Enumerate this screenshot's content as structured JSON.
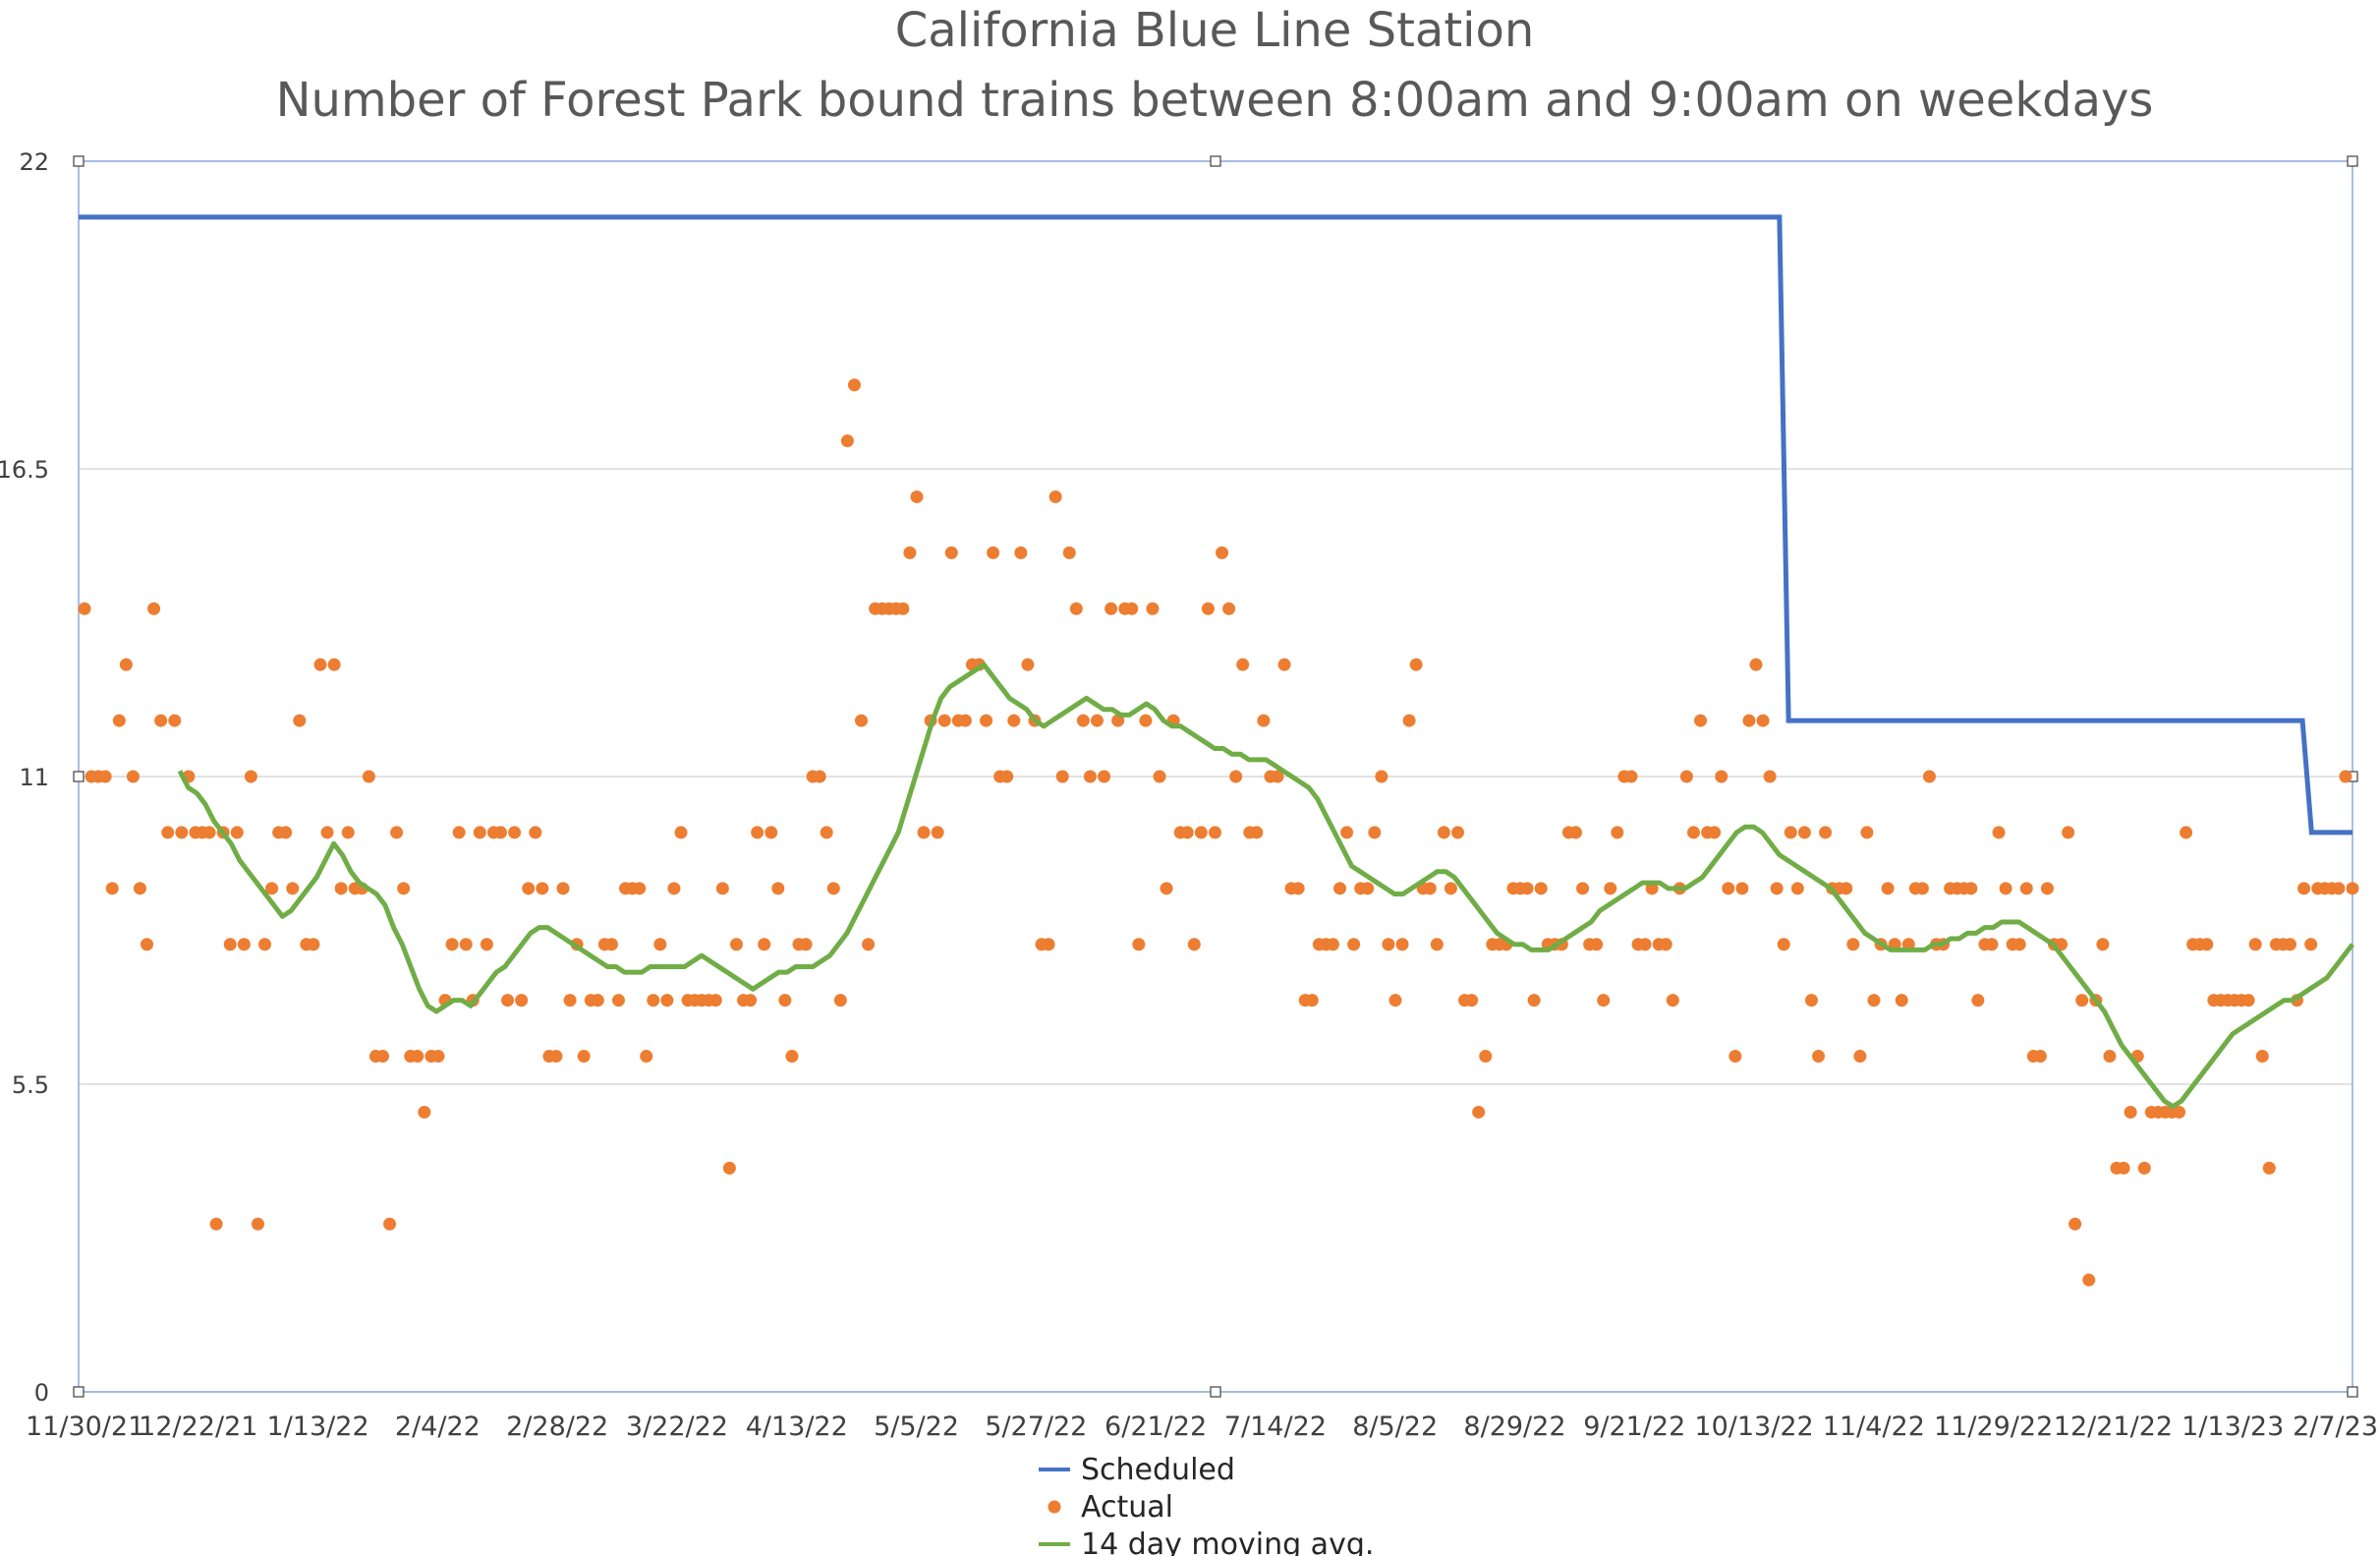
{
  "chart_data": {
    "type": "line",
    "title": "California Blue Line Station",
    "subtitle": "Number of Forest Park bound trains between 8:00am and 9:00am on weekdays",
    "xlabel": "",
    "ylabel": "",
    "ylim": [
      0,
      22
    ],
    "y_ticks": [
      "0",
      "5.5",
      "11",
      "16.5",
      "22"
    ],
    "x_ticks": [
      "11/30/21",
      "12/22/21",
      "1/13/22",
      "2/4/22",
      "2/28/22",
      "3/22/22",
      "4/13/22",
      "5/5/22",
      "5/27/22",
      "6/21/22",
      "7/14/22",
      "8/5/22",
      "8/29/22",
      "9/21/22",
      "10/13/22",
      "11/4/22",
      "11/29/22",
      "12/21/22",
      "1/13/23",
      "2/7/23"
    ],
    "grid": "horizontal",
    "legend_position": "bottom",
    "colors": {
      "scheduled": "#4472C4",
      "actual": "#ED7D31",
      "moving_avg": "#70AD47"
    },
    "series": [
      {
        "name": "Scheduled",
        "type": "line",
        "x": [
          0,
          0.748,
          0.752,
          0.978,
          0.982,
          1.0
        ],
        "values": [
          21,
          21,
          12,
          12,
          10,
          10
        ]
      },
      {
        "name": "Actual",
        "type": "scatter",
        "values": [
          14,
          11,
          11,
          11,
          9,
          12,
          13,
          11,
          9,
          8,
          14,
          12,
          10,
          12,
          10,
          11,
          10,
          10,
          10,
          3,
          10,
          8,
          10,
          8,
          11,
          3,
          8,
          9,
          10,
          10,
          9,
          12,
          8,
          8,
          13,
          10,
          13,
          9,
          10,
          9,
          9,
          11,
          6,
          6,
          3,
          10,
          9,
          6,
          6,
          5,
          6,
          6,
          7,
          8,
          10,
          8,
          7,
          10,
          8,
          10,
          10,
          7,
          10,
          7,
          9,
          10,
          9,
          6,
          6,
          9,
          7,
          8,
          6,
          7,
          7,
          8,
          8,
          7,
          9,
          9,
          9,
          6,
          7,
          8,
          7,
          9,
          10,
          7,
          7,
          7,
          7,
          7,
          9,
          4,
          8,
          7,
          7,
          10,
          8,
          10,
          9,
          7,
          6,
          8,
          8,
          11,
          11,
          10,
          9,
          7,
          17,
          18,
          12,
          8,
          14,
          14,
          14,
          14,
          14,
          15,
          16,
          10,
          12,
          10,
          12,
          15,
          12,
          12,
          13,
          13,
          12,
          15,
          11,
          11,
          12,
          15,
          13,
          12,
          8,
          8,
          16,
          11,
          15,
          14,
          12,
          11,
          12,
          11,
          14,
          12,
          14,
          14,
          8,
          12,
          14,
          11,
          9,
          12,
          10,
          10,
          8,
          10,
          14,
          10,
          15,
          14,
          11,
          13,
          10,
          10,
          12,
          11,
          11,
          13,
          9,
          9,
          7,
          7,
          8,
          8,
          8,
          9,
          10,
          8,
          9,
          9,
          10,
          11,
          8,
          7,
          8,
          12,
          13,
          9,
          9,
          8,
          10,
          9,
          10,
          7,
          7,
          5,
          6,
          8,
          8,
          8,
          9,
          9,
          9,
          7,
          9,
          8,
          8,
          8,
          10,
          10,
          9,
          8,
          8,
          7,
          9,
          10,
          11,
          11,
          8,
          8,
          9,
          8,
          8,
          7,
          9,
          11,
          10,
          12,
          10,
          10,
          11,
          9,
          6,
          9,
          12,
          13,
          12,
          11,
          9,
          8,
          10,
          9,
          10,
          7,
          6,
          10,
          9,
          9,
          9,
          8,
          6,
          10,
          7,
          8,
          9,
          8,
          7,
          8,
          9,
          9,
          11,
          8,
          8,
          9,
          9,
          9,
          9,
          7,
          8,
          8,
          10,
          9,
          8,
          8,
          9,
          6,
          6,
          9,
          8,
          8,
          10,
          3,
          7,
          2,
          7,
          8,
          6,
          4,
          4,
          5,
          6,
          4,
          5,
          5,
          5,
          5,
          5,
          10,
          8,
          8,
          8,
          7,
          7,
          7,
          7,
          7,
          7,
          8,
          6,
          4,
          8,
          8,
          8,
          7,
          9,
          8,
          9,
          9,
          9,
          9,
          11,
          9
        ]
      },
      {
        "name": "14 day moving avg.",
        "type": "line",
        "values": [
          11.1,
          10.8,
          10.7,
          10.5,
          10.2,
          10.0,
          9.8,
          9.5,
          9.3,
          9.1,
          8.9,
          8.7,
          8.5,
          8.6,
          8.8,
          9.0,
          9.2,
          9.5,
          9.8,
          9.6,
          9.3,
          9.1,
          9.0,
          8.9,
          8.7,
          8.3,
          8.0,
          7.6,
          7.2,
          6.9,
          6.8,
          6.9,
          7.0,
          7.0,
          6.9,
          7.1,
          7.3,
          7.5,
          7.6,
          7.8,
          8.0,
          8.2,
          8.3,
          8.3,
          8.2,
          8.1,
          8.0,
          7.9,
          7.8,
          7.7,
          7.6,
          7.6,
          7.5,
          7.5,
          7.5,
          7.6,
          7.6,
          7.6,
          7.6,
          7.6,
          7.7,
          7.8,
          7.7,
          7.6,
          7.5,
          7.4,
          7.3,
          7.2,
          7.3,
          7.4,
          7.5,
          7.5,
          7.6,
          7.6,
          7.6,
          7.7,
          7.8,
          8.0,
          8.2,
          8.5,
          8.8,
          9.1,
          9.4,
          9.7,
          10.0,
          10.5,
          11.0,
          11.5,
          12.0,
          12.4,
          12.6,
          12.7,
          12.8,
          12.9,
          13.0,
          12.8,
          12.6,
          12.4,
          12.3,
          12.2,
          12.0,
          11.9,
          12.0,
          12.1,
          12.2,
          12.3,
          12.4,
          12.3,
          12.2,
          12.2,
          12.1,
          12.1,
          12.2,
          12.3,
          12.2,
          12.0,
          11.9,
          11.9,
          11.8,
          11.7,
          11.6,
          11.5,
          11.5,
          11.4,
          11.4,
          11.3,
          11.3,
          11.3,
          11.2,
          11.1,
          11.0,
          10.9,
          10.8,
          10.6,
          10.3,
          10.0,
          9.7,
          9.4,
          9.3,
          9.2,
          9.1,
          9.0,
          8.9,
          8.9,
          9.0,
          9.1,
          9.2,
          9.3,
          9.3,
          9.2,
          9.0,
          8.8,
          8.6,
          8.4,
          8.2,
          8.1,
          8.0,
          8.0,
          7.9,
          7.9,
          7.9,
          8.0,
          8.1,
          8.2,
          8.3,
          8.4,
          8.6,
          8.7,
          8.8,
          8.9,
          9.0,
          9.1,
          9.1,
          9.1,
          9.0,
          9.0,
          9.0,
          9.1,
          9.2,
          9.4,
          9.6,
          9.8,
          10.0,
          10.1,
          10.1,
          10.0,
          9.8,
          9.6,
          9.5,
          9.4,
          9.3,
          9.2,
          9.1,
          9.0,
          8.8,
          8.6,
          8.4,
          8.2,
          8.1,
          8.0,
          7.9,
          7.9,
          7.9,
          7.9,
          7.9,
          8.0,
          8.0,
          8.1,
          8.1,
          8.2,
          8.2,
          8.3,
          8.3,
          8.4,
          8.4,
          8.4,
          8.3,
          8.2,
          8.1,
          8.0,
          7.8,
          7.6,
          7.4,
          7.2,
          7.0,
          6.8,
          6.5,
          6.2,
          6.0,
          5.8,
          5.6,
          5.4,
          5.2,
          5.1,
          5.2,
          5.4,
          5.6,
          5.8,
          6.0,
          6.2,
          6.4,
          6.5,
          6.6,
          6.7,
          6.8,
          6.9,
          7.0,
          7.0,
          7.1,
          7.2,
          7.3,
          7.4,
          7.6,
          7.8,
          8.0
        ]
      }
    ]
  }
}
